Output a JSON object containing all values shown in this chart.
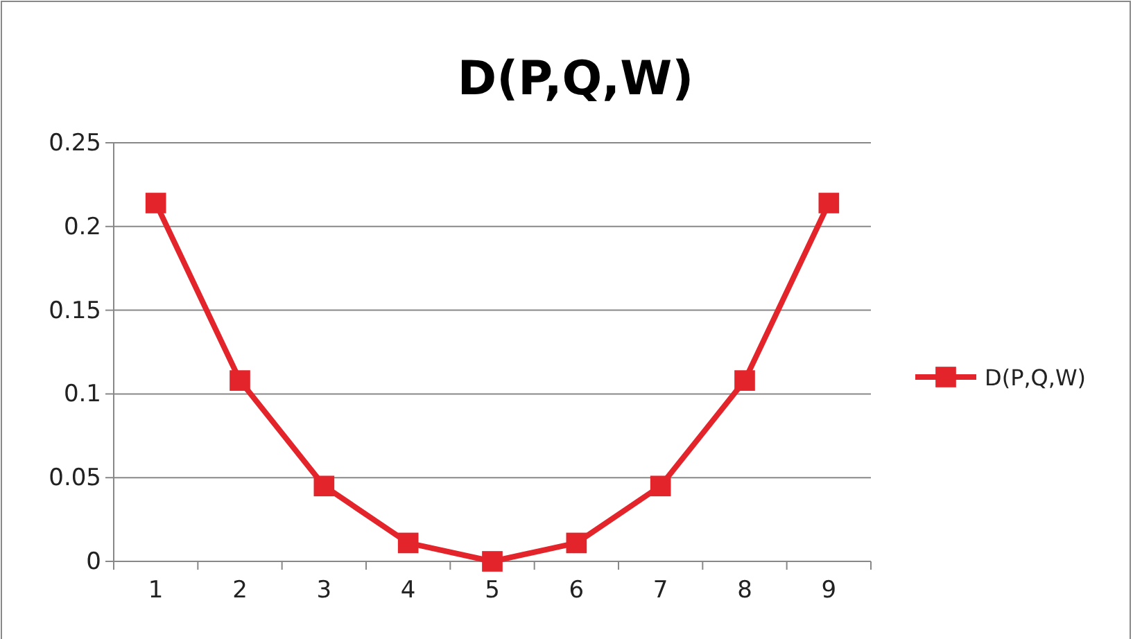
{
  "chart_data": {
    "type": "line",
    "title": "D(P,Q,W)",
    "categories": [
      "1",
      "2",
      "3",
      "4",
      "5",
      "6",
      "7",
      "8",
      "9"
    ],
    "series": [
      {
        "name": "D(P,Q,W)",
        "color": "#e3242b",
        "values": [
          0.214,
          0.108,
          0.045,
          0.011,
          0,
          0.011,
          0.045,
          0.108,
          0.214
        ]
      }
    ],
    "ylim": [
      0,
      0.25
    ],
    "yticks": [
      0,
      0.05,
      0.1,
      0.15,
      0.2,
      0.25
    ],
    "grid": "y",
    "legend": "right",
    "marker": "square",
    "line_style": "solid"
  }
}
